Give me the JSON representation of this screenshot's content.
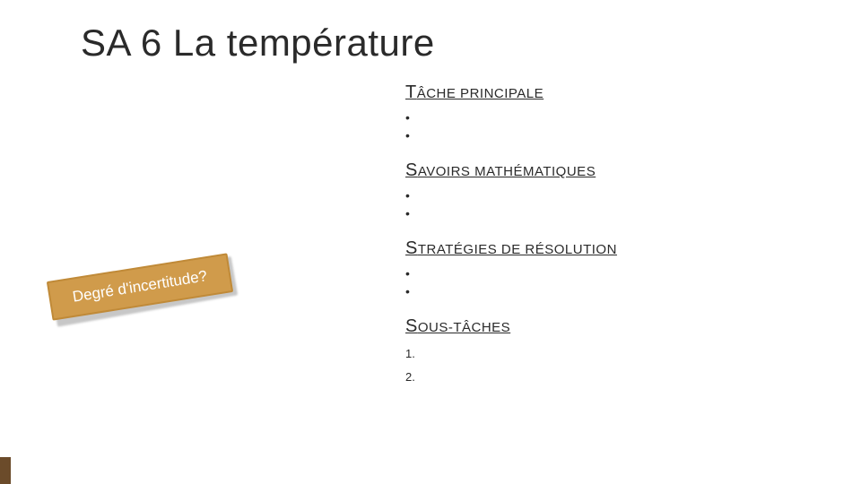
{
  "title": "SA 6 La température",
  "sticker": "Degré d'incertitude?",
  "sections": [
    {
      "first": "T",
      "rest": "ÂCHE PRINCIPALE",
      "items": [
        "•",
        "•"
      ],
      "type": "bullets"
    },
    {
      "first": "S",
      "rest": "AVOIRS MATHÉMATIQUES",
      "items": [
        "•",
        "•"
      ],
      "type": "bullets"
    },
    {
      "first": "S",
      "rest": "TRATÉGIES DE RÉSOLUTION",
      "items": [
        "•",
        "•"
      ],
      "type": "bullets"
    },
    {
      "first": "S",
      "rest": "OUS-TÂCHES",
      "items": [
        "1.",
        "2."
      ],
      "type": "numbered"
    }
  ],
  "colors": {
    "accent": "#6b4b2a",
    "sticker_bg": "#d09b4b",
    "sticker_border": "#c08a38",
    "text": "#2a2a2a",
    "bg": "#ffffff"
  }
}
